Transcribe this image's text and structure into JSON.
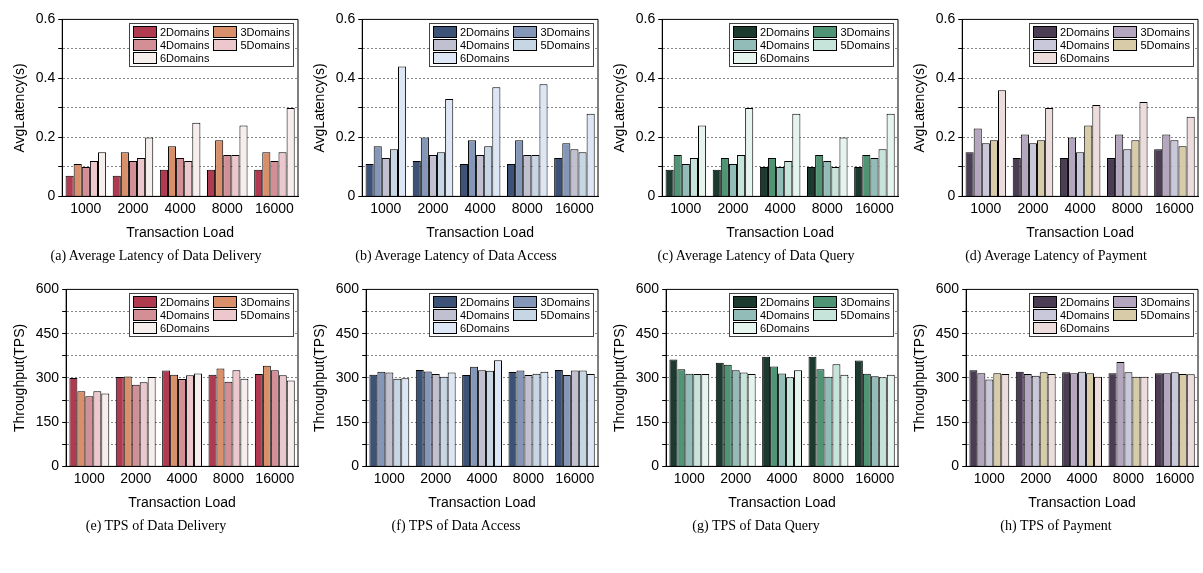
{
  "chart_data": [
    {
      "type": "bar",
      "title": "(a) Average Latency of Data Delivery",
      "xlabel": "Transaction Load",
      "ylabel": "AvgLatency(s)",
      "categories": [
        "1000",
        "2000",
        "4000",
        "8000",
        "16000"
      ],
      "ylim": [
        0,
        0.6
      ],
      "yticks": [
        0,
        {
          "value": 0.1,
          "label": null
        },
        0.2,
        {
          "value": 0.3,
          "label": null
        },
        0.4,
        {
          "value": 0.5,
          "label": null
        },
        0.6
      ],
      "grid": "y",
      "legend": "top right",
      "series": [
        {
          "name": "2Domains",
          "color": "#b03a50",
          "values": [
            0.07,
            0.07,
            0.09,
            0.09,
            0.09
          ]
        },
        {
          "name": "3Domains",
          "color": "#d9906a",
          "values": [
            0.11,
            0.15,
            0.17,
            0.19,
            0.15
          ]
        },
        {
          "name": "4Domains",
          "color": "#d48e96",
          "values": [
            0.1,
            0.12,
            0.13,
            0.14,
            0.12
          ]
        },
        {
          "name": "5Domains",
          "color": "#ecc8cc",
          "values": [
            0.12,
            0.13,
            0.12,
            0.14,
            0.15
          ]
        },
        {
          "name": "6Domains",
          "color": "#f6eeec",
          "values": [
            0.15,
            0.2,
            0.25,
            0.24,
            0.3
          ]
        }
      ]
    },
    {
      "type": "bar",
      "title": "(b) Average Latency of Data Access",
      "xlabel": "Transaction Load",
      "ylabel": "AvgLatency(s)",
      "categories": [
        "1000",
        "2000",
        "4000",
        "8000",
        "16000"
      ],
      "ylim": [
        0,
        0.6
      ],
      "yticks": [
        0,
        {
          "value": 0.1,
          "label": null
        },
        0.2,
        {
          "value": 0.3,
          "label": null
        },
        0.4,
        {
          "value": 0.5,
          "label": null
        },
        0.6
      ],
      "grid": "y",
      "legend": "top right",
      "series": [
        {
          "name": "2Domains",
          "color": "#3d5277",
          "values": [
            0.11,
            0.12,
            0.11,
            0.11,
            0.13
          ]
        },
        {
          "name": "3Domains",
          "color": "#8597b8",
          "values": [
            0.17,
            0.2,
            0.19,
            0.19,
            0.18
          ]
        },
        {
          "name": "4Domains",
          "color": "#c0c0d0",
          "values": [
            0.13,
            0.14,
            0.14,
            0.14,
            0.16
          ]
        },
        {
          "name": "5Domains",
          "color": "#c6d6e4",
          "values": [
            0.16,
            0.15,
            0.17,
            0.14,
            0.15
          ]
        },
        {
          "name": "6Domains",
          "color": "#dde6f4",
          "values": [
            0.44,
            0.33,
            0.37,
            0.38,
            0.28
          ]
        }
      ]
    },
    {
      "type": "bar",
      "title": "(c) Average Latency of Data Query",
      "xlabel": "Transaction Load",
      "ylabel": "AvgLatency(s)",
      "categories": [
        "1000",
        "2000",
        "4000",
        "8000",
        "16000"
      ],
      "ylim": [
        0,
        0.6
      ],
      "yticks": [
        0,
        {
          "value": 0.1,
          "label": null
        },
        0.2,
        {
          "value": 0.3,
          "label": null
        },
        0.4,
        {
          "value": 0.5,
          "label": null
        },
        0.6
      ],
      "grid": "y",
      "legend": "top right",
      "series": [
        {
          "name": "2Domains",
          "color": "#1c3a2e",
          "values": [
            0.09,
            0.09,
            0.1,
            0.1,
            0.1
          ]
        },
        {
          "name": "3Domains",
          "color": "#4f9474",
          "values": [
            0.14,
            0.13,
            0.13,
            0.14,
            0.14
          ]
        },
        {
          "name": "4Domains",
          "color": "#92bcb8",
          "values": [
            0.11,
            0.11,
            0.1,
            0.12,
            0.13
          ]
        },
        {
          "name": "5Domains",
          "color": "#c6e4da",
          "values": [
            0.13,
            0.14,
            0.12,
            0.1,
            0.16
          ]
        },
        {
          "name": "6Domains",
          "color": "#e6f4ee",
          "values": [
            0.24,
            0.3,
            0.28,
            0.2,
            0.28
          ]
        }
      ]
    },
    {
      "type": "bar",
      "title": "(d) Average Latency of Payment",
      "xlabel": "Transaction Load",
      "ylabel": "AvgLatency(s)",
      "categories": [
        "1000",
        "2000",
        "4000",
        "8000",
        "16000"
      ],
      "ylim": [
        0,
        0.6
      ],
      "yticks": [
        0,
        {
          "value": 0.1,
          "label": null
        },
        0.2,
        {
          "value": 0.3,
          "label": null
        },
        0.4,
        {
          "value": 0.5,
          "label": null
        },
        0.6
      ],
      "grid": "y",
      "legend": "top right",
      "series": [
        {
          "name": "2Domains",
          "color": "#4a3d54",
          "values": [
            0.15,
            0.13,
            0.13,
            0.13,
            0.16
          ]
        },
        {
          "name": "3Domains",
          "color": "#b4a6be",
          "values": [
            0.23,
            0.21,
            0.2,
            0.21,
            0.21
          ]
        },
        {
          "name": "4Domains",
          "color": "#c8c8da",
          "values": [
            0.18,
            0.18,
            0.15,
            0.16,
            0.19
          ]
        },
        {
          "name": "5Domains",
          "color": "#d8cba8",
          "values": [
            0.19,
            0.19,
            0.24,
            0.19,
            0.17
          ]
        },
        {
          "name": "6Domains",
          "color": "#ecdcdc",
          "values": [
            0.36,
            0.3,
            0.31,
            0.32,
            0.27
          ]
        }
      ]
    },
    {
      "type": "bar",
      "title": "(e) TPS of Data Delivery",
      "xlabel": "Transaction Load",
      "ylabel": "Throughput(TPS)",
      "categories": [
        "1000",
        "2000",
        "4000",
        "8000",
        "16000"
      ],
      "ylim": [
        0,
        600
      ],
      "yticks": [
        0,
        {
          "value": 75,
          "label": null
        },
        150,
        {
          "value": 225,
          "label": null
        },
        300,
        {
          "value": 375,
          "label": null
        },
        450,
        {
          "value": 525,
          "label": null
        },
        600
      ],
      "grid": "y",
      "legend": "top right",
      "series": [
        {
          "name": "2Domains",
          "color": "#b03a50",
          "values": [
            300,
            303,
            325,
            311,
            313
          ]
        },
        {
          "name": "3Domains",
          "color": "#d9906a",
          "values": [
            255,
            305,
            311,
            332,
            341
          ]
        },
        {
          "name": "4Domains",
          "color": "#d48e96",
          "values": [
            238,
            277,
            296,
            287,
            326
          ]
        },
        {
          "name": "5Domains",
          "color": "#ecc8cc",
          "values": [
            255,
            285,
            309,
            326,
            309
          ]
        },
        {
          "name": "6Domains",
          "color": "#f6eeec",
          "values": [
            247,
            303,
            315,
            297,
            291
          ]
        }
      ]
    },
    {
      "type": "bar",
      "title": "(f) TPS of Data Access",
      "xlabel": "Transaction Load",
      "ylabel": "Throughput(TPS)",
      "categories": [
        "1000",
        "2000",
        "4000",
        "8000",
        "16000"
      ],
      "ylim": [
        0,
        600
      ],
      "yticks": [
        0,
        {
          "value": 75,
          "label": null
        },
        150,
        {
          "value": 225,
          "label": null
        },
        300,
        {
          "value": 375,
          "label": null
        },
        450,
        {
          "value": 525,
          "label": null
        },
        600
      ],
      "grid": "y",
      "legend": "top right",
      "series": [
        {
          "name": "2Domains",
          "color": "#3d5277",
          "values": [
            311,
            327,
            310,
            320,
            327
          ]
        },
        {
          "name": "3Domains",
          "color": "#8597b8",
          "values": [
            321,
            322,
            338,
            325,
            310
          ]
        },
        {
          "name": "4Domains",
          "color": "#c0c0d0",
          "values": [
            318,
            313,
            326,
            310,
            325
          ]
        },
        {
          "name": "5Domains",
          "color": "#c6d6e4",
          "values": [
            297,
            304,
            324,
            314,
            325
          ]
        },
        {
          "name": "6Domains",
          "color": "#dde6f4",
          "values": [
            299,
            318,
            360,
            321,
            313
          ]
        }
      ]
    },
    {
      "type": "bar",
      "title": "(g) TPS of Data Query",
      "xlabel": "Transaction Load",
      "ylabel": "Throughput(TPS)",
      "categories": [
        "1000",
        "2000",
        "4000",
        "8000",
        "16000"
      ],
      "ylim": [
        0,
        600
      ],
      "yticks": [
        0,
        {
          "value": 75,
          "label": null
        },
        150,
        {
          "value": 225,
          "label": null
        },
        300,
        {
          "value": 375,
          "label": null
        },
        450,
        {
          "value": 525,
          "label": null
        },
        600
      ],
      "grid": "y",
      "legend": "top right",
      "series": [
        {
          "name": "2Domains",
          "color": "#1c3a2e",
          "values": [
            362,
            351,
            372,
            372,
            359
          ]
        },
        {
          "name": "3Domains",
          "color": "#4f9474",
          "values": [
            329,
            345,
            339,
            329,
            314
          ]
        },
        {
          "name": "4Domains",
          "color": "#92bcb8",
          "values": [
            314,
            326,
            315,
            304,
            306
          ]
        },
        {
          "name": "5Domains",
          "color": "#c6e4da",
          "values": [
            313,
            318,
            302,
            346,
            302
          ]
        },
        {
          "name": "6Domains",
          "color": "#e6f4ee",
          "values": [
            313,
            313,
            326,
            311,
            311
          ]
        }
      ]
    },
    {
      "type": "bar",
      "title": "(h) TPS of Payment",
      "xlabel": "Transaction Load",
      "ylabel": "Throughput(TPS)",
      "categories": [
        "1000",
        "2000",
        "4000",
        "8000",
        "16000"
      ],
      "ylim": [
        0,
        600
      ],
      "yticks": [
        0,
        {
          "value": 75,
          "label": null
        },
        150,
        {
          "value": 225,
          "label": null
        },
        300,
        {
          "value": 375,
          "label": null
        },
        450,
        {
          "value": 525,
          "label": null
        },
        600
      ],
      "grid": "y",
      "legend": "top right",
      "series": [
        {
          "name": "2Domains",
          "color": "#4a3d54",
          "values": [
            326,
            321,
            319,
            316,
            316
          ]
        },
        {
          "name": "3Domains",
          "color": "#b4a6be",
          "values": [
            316,
            313,
            316,
            354,
            316
          ]
        },
        {
          "name": "4Domains",
          "color": "#c8c8da",
          "values": [
            295,
            307,
            321,
            319,
            319
          ]
        },
        {
          "name": "5Domains",
          "color": "#d8cba8",
          "values": [
            316,
            319,
            316,
            304,
            313
          ]
        },
        {
          "name": "6Domains",
          "color": "#ecdcdc",
          "values": [
            313,
            313,
            304,
            304,
            312
          ]
        }
      ]
    }
  ]
}
